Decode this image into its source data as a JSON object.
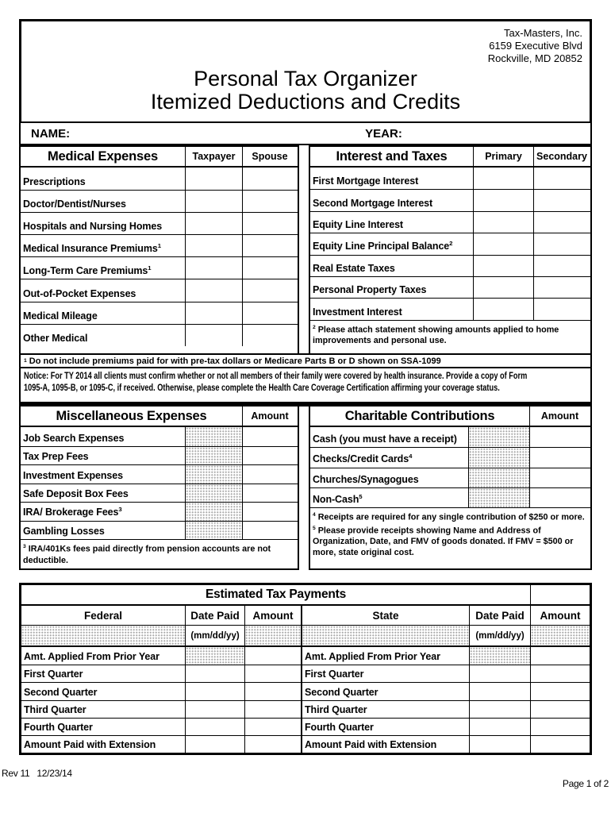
{
  "header": {
    "company_name": "Tax-Masters, Inc.",
    "company_address1": "6159 Executive Blvd",
    "company_address2": "Rockville, MD 20852",
    "title_line1": "Personal Tax Organizer",
    "title_line2": "Itemized Deductions and Credits"
  },
  "identity": {
    "name_label": "NAME:",
    "year_label": "YEAR:"
  },
  "medical": {
    "title": "Medical Expenses",
    "col1": "Taxpayer",
    "col2": "Spouse",
    "rows": [
      {
        "label": "Prescriptions"
      },
      {
        "label": "Doctor/Dentist/Nurses"
      },
      {
        "label": "Hospitals and Nursing Homes"
      },
      {
        "label": "Medical Insurance Premiums",
        "sup": "1"
      },
      {
        "label": "Long-Term Care Premiums",
        "sup": "1"
      },
      {
        "label": "Out-of-Pocket Expenses"
      },
      {
        "label": "Medical Mileage"
      },
      {
        "label": "Other Medical"
      }
    ]
  },
  "interest": {
    "title": "Interest and Taxes",
    "col1": "Primary",
    "col2": "Secondary",
    "rows": [
      {
        "label": "First Mortgage Interest"
      },
      {
        "label": "Second Mortgage Interest"
      },
      {
        "label": "Equity Line Interest"
      },
      {
        "label": "Equity Line Principal Balance",
        "sup": "2"
      },
      {
        "label": "Real Estate Taxes"
      },
      {
        "label": "Personal Property Taxes"
      },
      {
        "label": "Investment Interest"
      }
    ],
    "footnote_sup": "2",
    "footnote_text": "Please attach statement showing amounts applied to home improvements and personal use."
  },
  "footnote1": {
    "sup": "1",
    "text": "Do not include premiums paid for with pre-tax dollars or Medicare Parts B or D shown on SSA-1099"
  },
  "notice_lines": [
    "Notice: For TY 2014 all clients must confirm whether or not all members of their family were covered by health insurance. Provide a copy of Form",
    "1095-A, 1095-B, or 1095-C, if received. Otherwise, please complete the Health Care Coverage Certification affirming your coverage status."
  ],
  "misc": {
    "title": "Miscellaneous Expenses",
    "amount_col": "Amount",
    "rows": [
      {
        "label": "Job Search Expenses"
      },
      {
        "label": "Tax Prep Fees"
      },
      {
        "label": "Investment Expenses"
      },
      {
        "label": "Safe Deposit Box Fees"
      },
      {
        "label": "IRA/ Brokerage Fees",
        "sup": "3"
      },
      {
        "label": "Gambling Losses"
      }
    ],
    "footnotes": [
      {
        "sup": "3",
        "text": "IRA/401Ks fees paid directly from pension accounts are not deductible."
      }
    ]
  },
  "charitable": {
    "title": "Charitable Contributions",
    "amount_col": "Amount",
    "rows": [
      {
        "label": "Cash (you must have a receipt)"
      },
      {
        "label": "Checks/Credit Cards",
        "sup": "4"
      },
      {
        "label": "Churches/Synagogues"
      },
      {
        "label": "Non-Cash",
        "sup": "5"
      }
    ],
    "footnotes": [
      {
        "sup": "4",
        "text": "Receipts are required for any single contribution of $250 or more."
      },
      {
        "sup": "5",
        "text": "Please provide receipts showing Name and Address of  Organization, Date, and FMV of goods donated. If FMV = $500 or more, state original cost."
      }
    ]
  },
  "estimated": {
    "title": "Estimated Tax Payments",
    "federal_col": "Federal",
    "state_col": "State",
    "date_col": "Date Paid",
    "amount_col": "Amount",
    "date_format": "(mm/dd/yy)",
    "rows": [
      {
        "label": "Amt. Applied From Prior Year",
        "date_dotted": true
      },
      {
        "label": "First Quarter"
      },
      {
        "label": "Second Quarter"
      },
      {
        "label": "Third Quarter"
      },
      {
        "label": "Fourth Quarter"
      },
      {
        "label": "Amount Paid with Extension"
      }
    ]
  },
  "footer": {
    "left": "Rev 11   12/23/14",
    "right": "Page 1 of 2"
  }
}
